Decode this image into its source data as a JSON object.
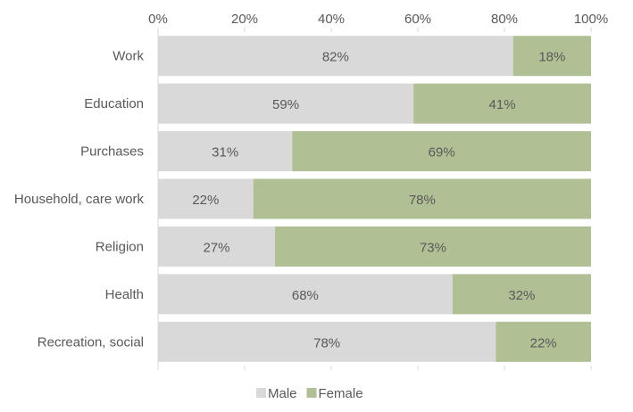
{
  "chart_data": {
    "type": "bar",
    "orientation": "horizontal",
    "stacked": true,
    "categories": [
      "Work",
      "Education",
      "Purchases",
      "Household, care work",
      "Religion",
      "Health",
      "Recreation, social"
    ],
    "series": [
      {
        "name": "Male",
        "values": [
          82,
          59,
          31,
          22,
          27,
          68,
          78
        ],
        "labels": [
          "82%",
          "59%",
          "31%",
          "22%",
          "27%",
          "68%",
          "78%"
        ],
        "color": "#d9d9d9"
      },
      {
        "name": "Female",
        "values": [
          18,
          41,
          69,
          78,
          73,
          32,
          22
        ],
        "labels": [
          "18%",
          "41%",
          "69%",
          "78%",
          "73%",
          "32%",
          "22%"
        ],
        "color": "#b1c094"
      }
    ],
    "xticks": [
      "0%",
      "20%",
      "40%",
      "60%",
      "80%",
      "100%"
    ],
    "xlim": [
      0,
      100
    ],
    "x_axis_position": "top",
    "grid": false,
    "legend_position": "bottom",
    "title": "",
    "xlabel": "",
    "ylabel": "",
    "text_color": "#595959",
    "axis_color": "#d9d9d9"
  }
}
